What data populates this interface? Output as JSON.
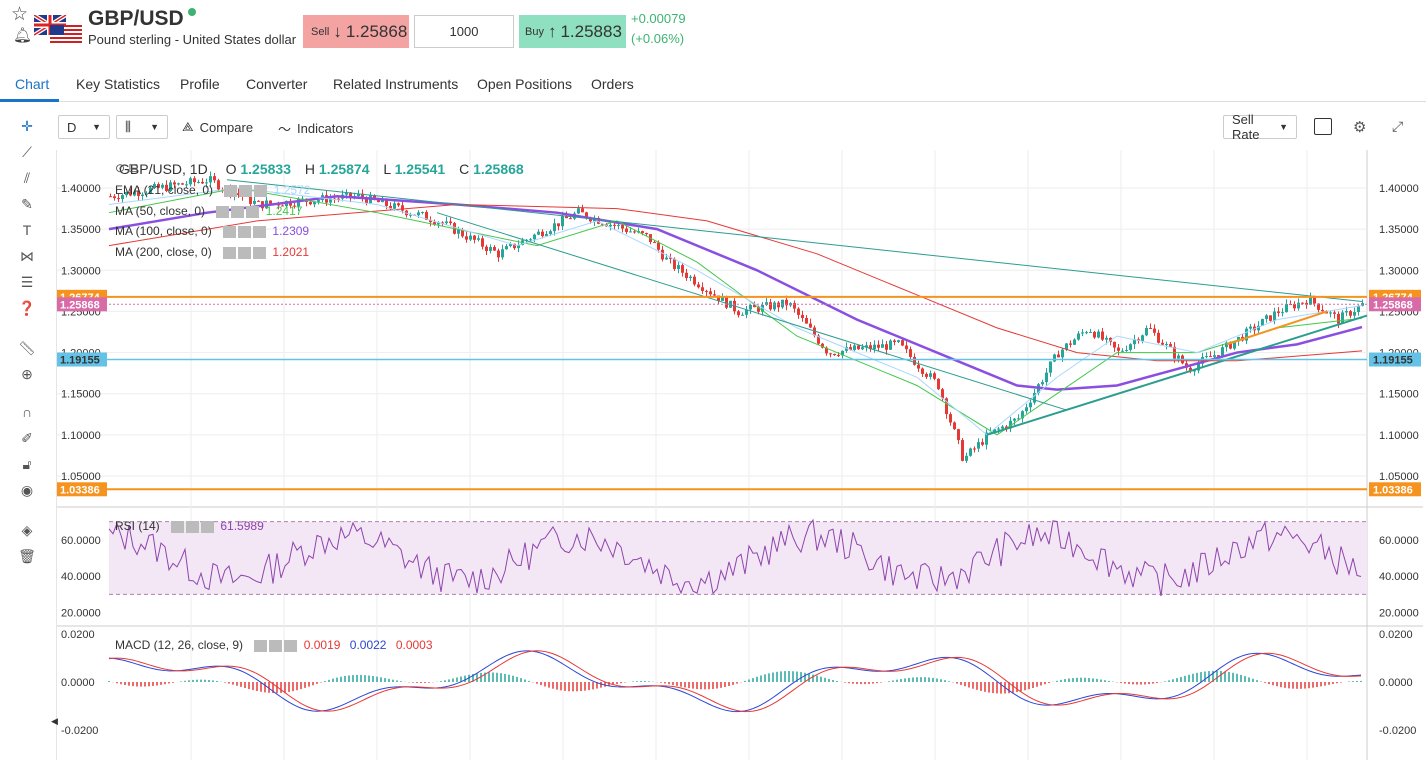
{
  "instrument": {
    "symbol": "GBP/USD",
    "name": "Pound sterling - United States dollar"
  },
  "trade": {
    "sell_label": "Sell",
    "sell_price": "1.25868",
    "quantity": "1000",
    "buy_label": "Buy",
    "buy_price": "1.25883",
    "change_abs": "+0.00079",
    "change_pct": "(+0.06%)"
  },
  "tabs": [
    "Chart",
    "Key Statistics",
    "Profile",
    "Converter",
    "Related Instruments",
    "Open Positions",
    "Orders"
  ],
  "toolbar": {
    "interval": "D",
    "compare": "Compare",
    "indicators": "Indicators",
    "price_source": "Sell Rate"
  },
  "main_legend": {
    "symbol": "GBP/USD, 1D",
    "o_label": "O",
    "o": "1.25833",
    "h_label": "H",
    "h": "1.25874",
    "l_label": "L",
    "l": "1.25541",
    "c_label": "C",
    "c": "1.25868"
  },
  "indicators": [
    {
      "name": "EMA (21, close, 0)",
      "value": "1.2572",
      "color": "#a9d7ff"
    },
    {
      "name": "MA (50, close, 0)",
      "value": "1.2417",
      "color": "#43c84a"
    },
    {
      "name": "MA (100, close, 0)",
      "value": "1.2309",
      "color": "#8a4fe0"
    },
    {
      "name": "MA (200, close, 0)",
      "value": "1.2021",
      "color": "#e53935"
    }
  ],
  "price_axis": [
    "1.40000",
    "1.35000",
    "1.30000",
    "1.25000",
    "1.20000",
    "1.15000",
    "1.10000",
    "1.05000"
  ],
  "price_axis_values": [
    1.4,
    1.35,
    1.3,
    1.25,
    1.2,
    1.15,
    1.1,
    1.05
  ],
  "markers": {
    "level_high": {
      "label": "1.26774",
      "value": 1.26774,
      "color": "#f5931e"
    },
    "current": {
      "label": "1.25868",
      "value": 1.25868,
      "color": "#d96aa8"
    },
    "level_mid": {
      "label": "1.19155",
      "value": 1.19155,
      "color": "#63c2e6"
    },
    "level_low": {
      "label": "1.03386",
      "value": 1.03386,
      "color": "#f5931e"
    }
  },
  "rsi": {
    "name": "RSI (14)",
    "value": "61.5989",
    "axis": [
      "60.0000",
      "40.0000",
      "20.0000"
    ]
  },
  "macd": {
    "name": "MACD (12, 26, close, 9)",
    "v1": "0.0019",
    "v2": "0.0022",
    "v3": "0.0003",
    "axis": [
      "0.0200",
      "0.0000",
      "-0.0200"
    ]
  },
  "colors": {
    "up": "#26a69a",
    "down": "#e53935",
    "accent": "#1a73c8"
  }
}
